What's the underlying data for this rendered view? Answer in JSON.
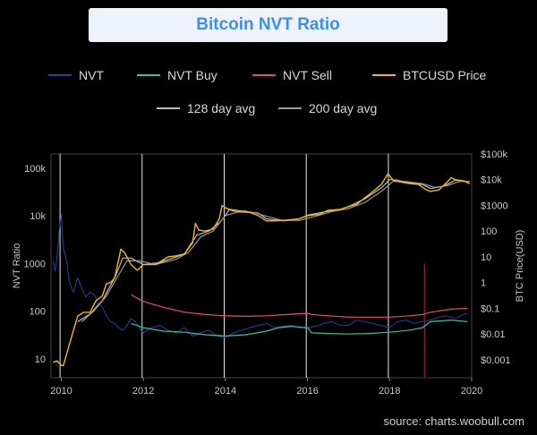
{
  "title": "Bitcoin NVT Ratio",
  "source": "source: charts.woobull.com",
  "chart_data": {
    "type": "line",
    "title": "Bitcoin NVT Ratio",
    "ylabel_left": "NVT Ratio",
    "ylabel_right": "BTC Price(USD)",
    "y_left_scale": "log",
    "y_left_range": [
      4,
      200000
    ],
    "y_right_scale": "log",
    "y_right_range": [
      0.0002,
      100000
    ],
    "x_range": [
      2009.75,
      2020.0
    ],
    "x_ticks": [
      "2010",
      "2012",
      "2014",
      "2016",
      "2018",
      "2020"
    ],
    "y_left_ticks": [
      {
        "label": "100k",
        "value": 100000
      },
      {
        "label": "10k",
        "value": 10000
      },
      {
        "label": "1000",
        "value": 1000
      },
      {
        "label": "100",
        "value": 100
      },
      {
        "label": "10",
        "value": 10
      }
    ],
    "y_right_ticks": [
      {
        "label": "$100k",
        "value": 100000
      },
      {
        "label": "$10k",
        "value": 10000
      },
      {
        "label": "$1000",
        "value": 1000
      },
      {
        "label": "100",
        "value": 100
      },
      {
        "label": "10",
        "value": 10
      },
      {
        "label": "1",
        "value": 1
      },
      {
        "label": "$0.1",
        "value": 0.1
      },
      {
        "label": "$0.01",
        "value": 0.01
      },
      {
        "label": "$0.001",
        "value": 0.001
      }
    ],
    "vertical_markers": [
      2009.97,
      2011.97,
      2013.97,
      2015.97,
      2017.97
    ],
    "red_marker": {
      "x": 2018.85,
      "y_top": 1000
    },
    "legend_row1": [
      {
        "name": "NVT",
        "color": "#2a3f9e"
      },
      {
        "name": "NVT Buy",
        "color": "#3bbfa0"
      },
      {
        "name": "NVT Sell",
        "color": "#e8506a"
      },
      {
        "name": "BTCUSD Price",
        "color": "#f0b429"
      }
    ],
    "legend_row2": [
      {
        "name": "128 day avg",
        "color": "#bdbdbd"
      },
      {
        "name": "200 day avg",
        "color": "#9a9a9a"
      }
    ],
    "series": [
      {
        "name": "NVT",
        "axis": "left",
        "color": "#2a3f9e",
        "x": [
          2009.8,
          2009.85,
          2009.9,
          2009.95,
          2010.0,
          2010.03,
          2010.06,
          2010.1,
          2010.15,
          2010.2,
          2010.3,
          2010.4,
          2010.5,
          2010.6,
          2010.7,
          2010.8,
          2010.9,
          2011.0,
          2011.1,
          2011.2,
          2011.3,
          2011.4,
          2011.5,
          2011.6,
          2011.7,
          2011.8,
          2011.9,
          2012.0,
          2012.2,
          2012.4,
          2012.6,
          2012.8,
          2013.0,
          2013.2,
          2013.4,
          2013.6,
          2013.8,
          2014.0,
          2014.2,
          2014.4,
          2014.6,
          2014.8,
          2015.0,
          2015.2,
          2015.4,
          2015.6,
          2015.8,
          2016.0,
          2016.2,
          2016.4,
          2016.6,
          2016.8,
          2017.0,
          2017.2,
          2017.4,
          2017.6,
          2017.8,
          2018.0,
          2018.2,
          2018.4,
          2018.6,
          2018.8,
          2019.0,
          2019.2,
          2019.4,
          2019.6,
          2019.8,
          2019.9
        ],
        "y": [
          1100,
          700,
          1500,
          5000,
          11000,
          4000,
          2000,
          1500,
          900,
          400,
          250,
          500,
          300,
          200,
          250,
          220,
          150,
          120,
          80,
          60,
          55,
          45,
          40,
          50,
          70,
          60,
          45,
          35,
          45,
          50,
          40,
          35,
          45,
          30,
          35,
          40,
          30,
          28,
          35,
          40,
          45,
          50,
          55,
          45,
          48,
          50,
          45,
          45,
          48,
          55,
          60,
          50,
          50,
          65,
          60,
          55,
          50,
          45,
          60,
          65,
          55,
          60,
          65,
          75,
          80,
          70,
          85,
          90
        ]
      },
      {
        "name": "NVT Buy",
        "axis": "left",
        "color": "#3bbfa0",
        "x": [
          2011.7,
          2012.0,
          2012.5,
          2013.0,
          2013.5,
          2014.0,
          2014.5,
          2015.0,
          2015.3,
          2015.6,
          2016.0,
          2016.1,
          2016.5,
          2017.0,
          2017.5,
          2018.0,
          2018.5,
          2018.8,
          2019.0,
          2019.5,
          2019.9
        ],
        "y": [
          55,
          45,
          38,
          36,
          32,
          30,
          32,
          38,
          45,
          48,
          45,
          35,
          34,
          33,
          34,
          36,
          40,
          45,
          60,
          65,
          60
        ]
      },
      {
        "name": "NVT Sell",
        "axis": "left",
        "color": "#e8506a",
        "x": [
          2011.7,
          2012.0,
          2012.5,
          2013.0,
          2013.5,
          2014.0,
          2014.5,
          2015.0,
          2015.5,
          2016.0,
          2016.1,
          2016.5,
          2017.0,
          2017.5,
          2018.0,
          2018.5,
          2018.8,
          2019.0,
          2019.5,
          2019.9
        ],
        "y": [
          220,
          160,
          120,
          95,
          85,
          80,
          78,
          80,
          85,
          90,
          85,
          80,
          75,
          75,
          75,
          80,
          85,
          95,
          110,
          115
        ]
      },
      {
        "name": "BTCUSD Price",
        "axis": "right",
        "color": "#f0b429",
        "x": [
          2009.8,
          2009.9,
          2010.0,
          2010.05,
          2010.2,
          2010.4,
          2010.55,
          2010.7,
          2010.85,
          2011.0,
          2011.1,
          2011.2,
          2011.3,
          2011.4,
          2011.45,
          2011.55,
          2011.7,
          2011.85,
          2012.0,
          2012.3,
          2012.6,
          2012.8,
          2013.0,
          2013.2,
          2013.27,
          2013.35,
          2013.5,
          2013.7,
          2013.85,
          2013.92,
          2014.0,
          2014.2,
          2014.5,
          2014.8,
          2015.0,
          2015.2,
          2015.5,
          2015.8,
          2016.0,
          2016.3,
          2016.5,
          2016.8,
          2017.0,
          2017.2,
          2017.4,
          2017.6,
          2017.8,
          2017.96,
          2018.1,
          2018.3,
          2018.5,
          2018.7,
          2018.9,
          2019.0,
          2019.2,
          2019.4,
          2019.5,
          2019.6,
          2019.8,
          2019.95
        ],
        "y": [
          0.0008,
          0.0009,
          0.0006,
          0.0006,
          0.004,
          0.05,
          0.07,
          0.07,
          0.2,
          0.3,
          0.9,
          1.0,
          1.5,
          8,
          20,
          14,
          5,
          3,
          5,
          5,
          10,
          11,
          13,
          35,
          200,
          110,
          100,
          120,
          300,
          1000,
          800,
          600,
          600,
          400,
          250,
          250,
          270,
          300,
          400,
          450,
          650,
          700,
          900,
          1100,
          2000,
          3500,
          6500,
          17000,
          9000,
          8000,
          7000,
          6500,
          4000,
          3500,
          4000,
          8000,
          12000,
          10000,
          9000,
          7000
        ]
      },
      {
        "name": "128 day avg",
        "axis": "right",
        "color": "#bdbdbd",
        "x": [
          2010.4,
          2010.7,
          2011.0,
          2011.3,
          2011.5,
          2011.7,
          2012.0,
          2012.4,
          2012.8,
          2013.0,
          2013.3,
          2013.6,
          2013.9,
          2014.1,
          2014.4,
          2014.8,
          2015.0,
          2015.4,
          2015.8,
          2016.0,
          2016.4,
          2016.8,
          2017.0,
          2017.4,
          2017.8,
          2018.0,
          2018.2,
          2018.5,
          2018.8,
          2019.0,
          2019.3,
          2019.6,
          2019.95
        ],
        "y": [
          0.03,
          0.06,
          0.2,
          1.5,
          9,
          9,
          5,
          6,
          10,
          13,
          70,
          100,
          250,
          700,
          600,
          500,
          300,
          250,
          300,
          420,
          550,
          700,
          900,
          1800,
          4800,
          10000,
          9500,
          7500,
          6500,
          4500,
          5500,
          9500,
          8500
        ]
      },
      {
        "name": "200 day avg",
        "axis": "right",
        "color": "#9a9a9a",
        "x": [
          2010.5,
          2010.8,
          2011.1,
          2011.4,
          2011.6,
          2011.9,
          2012.3,
          2012.8,
          2013.1,
          2013.4,
          2013.7,
          2014.0,
          2014.3,
          2014.7,
          2015.0,
          2015.4,
          2015.8,
          2016.2,
          2016.6,
          2017.0,
          2017.4,
          2017.8,
          2018.1,
          2018.4,
          2018.8,
          2019.1,
          2019.4,
          2019.7,
          2019.95
        ],
        "y": [
          0.03,
          0.08,
          0.3,
          2,
          7,
          7,
          5,
          8,
          15,
          60,
          100,
          400,
          550,
          520,
          380,
          260,
          260,
          380,
          580,
          750,
          1300,
          3500,
          9000,
          8500,
          7000,
          5000,
          5800,
          8500,
          8700
        ]
      }
    ]
  }
}
